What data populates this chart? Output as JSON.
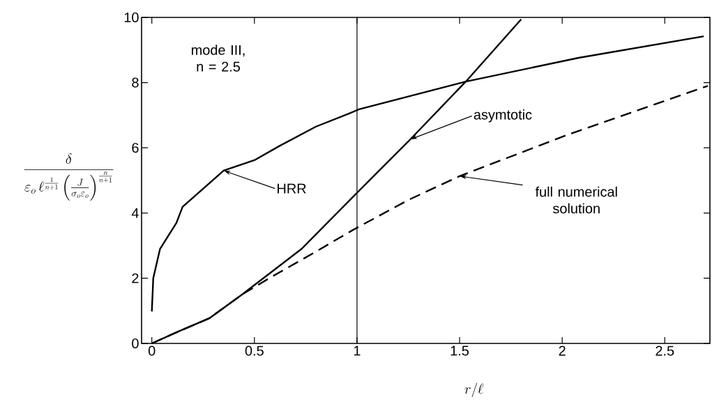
{
  "chart_data": {
    "type": "line",
    "xlabel": "r/\\ell",
    "ylabel": "\\frac{\\delta}{\\varepsilon_{o}\\,\\ell^{\\frac{1}{n+1}}\\left(\\frac{J}{\\sigma_{o}\\varepsilon_{o}}\\right)^{\\frac{n}{n+1}}}",
    "xlim": [
      -0.05,
      2.72
    ],
    "ylim": [
      0,
      10
    ],
    "xticks": [
      0,
      0.5,
      1,
      1.5,
      2,
      2.5
    ],
    "yticks": [
      0,
      2,
      4,
      6,
      8,
      10
    ],
    "grid": false,
    "marker": "none",
    "ref_lines": [
      {
        "axis": "x",
        "value": 1,
        "color": "#000000",
        "line_style": "solid"
      }
    ],
    "series": [
      {
        "color": "#000000",
        "line_style": "solid",
        "x": [
          0,
          0.007,
          0.04,
          0.12,
          0.15,
          0.35,
          0.5,
          0.62,
          0.8,
          0.96,
          1.01,
          1.53,
          2.08,
          2.69
        ],
        "values": [
          0.98,
          2.0,
          2.9,
          3.7,
          4.19,
          5.3,
          5.62,
          6.05,
          6.65,
          7.05,
          7.18,
          8.03,
          8.76,
          9.42
        ]
      },
      {
        "color": "#000000",
        "line_style": "solid",
        "x": [
          0,
          0.12,
          0.28,
          0.44,
          0.73,
          1.0,
          1.26,
          1.53,
          1.8
        ],
        "values": [
          0,
          0.34,
          0.77,
          1.5,
          2.9,
          4.62,
          6.26,
          8.03,
          9.94
        ]
      },
      {
        "color": "#000000",
        "line_style": "dashed",
        "x": [
          0,
          0.12,
          0.28,
          0.44,
          0.58,
          0.79,
          0.98,
          1.25,
          1.5,
          2.03,
          2.71
        ],
        "values": [
          0,
          0.34,
          0.77,
          1.5,
          2.03,
          2.78,
          3.48,
          4.4,
          5.13,
          6.41,
          7.9
        ]
      }
    ],
    "annotations": [
      "mode III, n = 2.5",
      {
        "text": "HRR",
        "x": 0.35,
        "y": 5.3
      },
      {
        "text": "asymtotic",
        "x": 1.26,
        "y": 6.26
      },
      {
        "text": "full numerical solution",
        "x": 1.5,
        "y": 5.13
      }
    ]
  }
}
